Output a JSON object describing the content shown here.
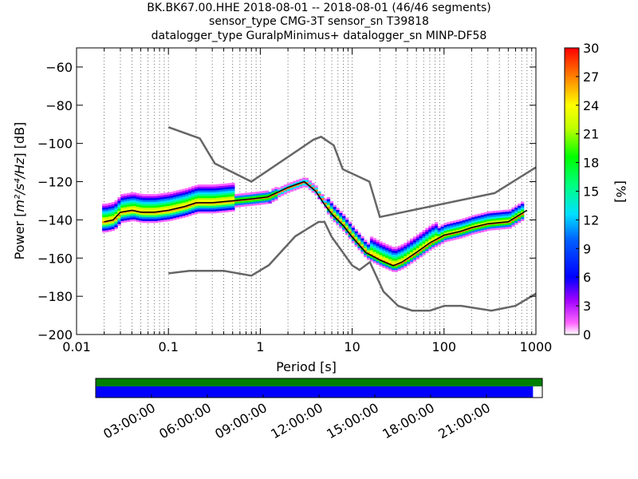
{
  "chart_data": {
    "type": "heatmap",
    "title": {
      "line1": "BK.BK67.00.HHE   2018-08-01 -- 2018-08-01  (46/46 segments)",
      "line2": "sensor_type CMG-3T sensor_sn T39818",
      "line3": "datalogger_type GuralpMinimus+ datalogger_sn MINP-DF58"
    },
    "xlabel": "Period [s]",
    "ylabel_prefix": "Power [",
    "ylabel_unit": "m²/s⁴/Hz",
    "ylabel_suffix": "] [dB]",
    "x_scale": "log",
    "xlim": [
      0.01,
      1000
    ],
    "ylim": [
      -200,
      -50
    ],
    "x_ticks": [
      {
        "value": 0.01,
        "label": "0.01"
      },
      {
        "value": 0.1,
        "label": "0.1"
      },
      {
        "value": 1,
        "label": "1"
      },
      {
        "value": 10,
        "label": "10"
      },
      {
        "value": 100,
        "label": "100"
      },
      {
        "value": 1000,
        "label": "1000"
      }
    ],
    "y_ticks": [
      {
        "value": -60,
        "label": "−60"
      },
      {
        "value": -80,
        "label": "−80"
      },
      {
        "value": -100,
        "label": "−100"
      },
      {
        "value": -120,
        "label": "−120"
      },
      {
        "value": -140,
        "label": "−140"
      },
      {
        "value": -160,
        "label": "−160"
      },
      {
        "value": -180,
        "label": "−180"
      },
      {
        "value": -200,
        "label": "−200"
      }
    ],
    "grid": "dotted vertical",
    "colorbar": {
      "label": "[%]",
      "range": [
        0,
        30
      ],
      "ticks": [
        {
          "value": 0,
          "label": "0"
        },
        {
          "value": 3,
          "label": "3"
        },
        {
          "value": 6,
          "label": "6"
        },
        {
          "value": 9,
          "label": "9"
        },
        {
          "value": 12,
          "label": "12"
        },
        {
          "value": 15,
          "label": "15"
        },
        {
          "value": 18,
          "label": "18"
        },
        {
          "value": 21,
          "label": "21"
        },
        {
          "value": 24,
          "label": "24"
        },
        {
          "value": 27,
          "label": "27"
        },
        {
          "value": 30,
          "label": "30"
        }
      ]
    },
    "noise_model_high": {
      "periods": [
        0.1,
        0.22,
        0.32,
        0.8,
        3.8,
        4.6,
        6.3,
        7.9,
        15.4,
        20,
        354.8,
        1000
      ],
      "power": [
        -91.5,
        -97.4,
        -110.5,
        -120,
        -98,
        -96.5,
        -101,
        -113.5,
        -120,
        -138.5,
        -126,
        -112.5
      ]
    },
    "noise_model_low": {
      "periods": [
        0.1,
        0.17,
        0.4,
        0.8,
        1.24,
        2.4,
        4.3,
        5,
        6,
        10,
        12,
        15.6,
        21.9,
        31.6,
        45,
        70,
        101,
        154,
        328,
        600,
        1000
      ],
      "power": [
        -168,
        -166.7,
        -166.7,
        -169.2,
        -163.7,
        -148.6,
        -141.1,
        -141.1,
        -149,
        -163.8,
        -166.2,
        -162.1,
        -177.5,
        -185,
        -187.5,
        -187.5,
        -185,
        -185,
        -187.5,
        -185,
        -178.6
      ]
    },
    "mode_curve": {
      "periods": [
        0.02,
        0.025,
        0.03,
        0.04,
        0.05,
        0.07,
        0.1,
        0.15,
        0.2,
        0.3,
        0.5,
        0.8,
        1.2,
        2,
        3,
        4,
        5,
        6,
        8,
        10,
        14,
        20,
        28,
        35,
        50,
        70,
        100,
        150,
        200,
        300,
        500,
        800
      ],
      "power": [
        -141,
        -140,
        -136,
        -135,
        -136,
        -136,
        -135,
        -133,
        -131,
        -131,
        -130,
        -129,
        -128,
        -123,
        -120,
        -125,
        -132,
        -137,
        -143,
        -149,
        -157,
        -161,
        -164,
        -162,
        -157,
        -152,
        -148,
        -146,
        -144,
        -142,
        -141,
        -135
      ]
    },
    "data_coverage": {
      "time_ticks": [
        "03:00:00",
        "06:00:00",
        "09:00:00",
        "12:00:00",
        "15:00:00",
        "18:00:00",
        "21:00:00"
      ],
      "covered_until_hour": 23.5,
      "gap_color": "#ff0000",
      "data_color": "#0000ff",
      "segments_color": "#008000"
    }
  }
}
